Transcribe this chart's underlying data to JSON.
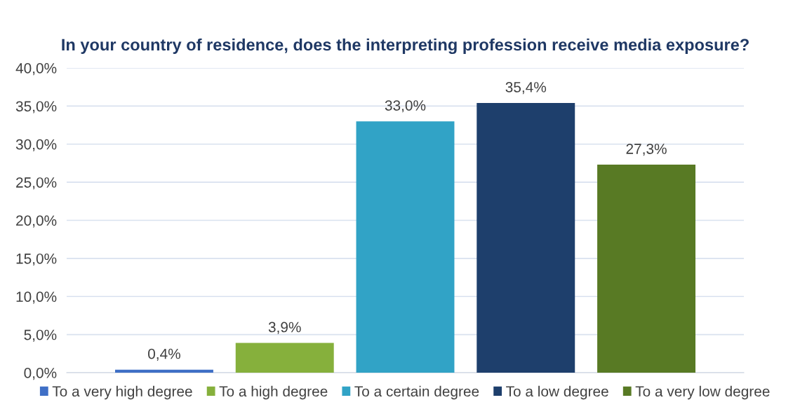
{
  "chart_data": {
    "type": "bar",
    "title": "In your country of residence, does the interpreting profession receive media exposure?",
    "categories": [
      null
    ],
    "series": [
      {
        "name": "To a very high degree",
        "color": "#3f6fc6",
        "values": [
          0.4
        ],
        "value_labels": [
          "0,4%"
        ]
      },
      {
        "name": "To a high degree",
        "color": "#86b03c",
        "values": [
          3.9
        ],
        "value_labels": [
          "3,9%"
        ]
      },
      {
        "name": "To a certain degree",
        "color": "#31a3c6",
        "values": [
          33.0
        ],
        "value_labels": [
          "33,0%"
        ]
      },
      {
        "name": "To a low degree",
        "color": "#1e3f6c",
        "values": [
          35.4
        ],
        "value_labels": [
          "35,4%"
        ]
      },
      {
        "name": "To a very low degree",
        "color": "#587a24",
        "values": [
          27.3
        ],
        "value_labels": [
          "27,3%"
        ]
      }
    ],
    "ylim": [
      0,
      40
    ],
    "yticks": [
      {
        "value": 0,
        "label": "0,0%"
      },
      {
        "value": 5,
        "label": "5,0%"
      },
      {
        "value": 10,
        "label": "10,0%"
      },
      {
        "value": 15,
        "label": "15,0%"
      },
      {
        "value": 20,
        "label": "20,0%"
      },
      {
        "value": 25,
        "label": "25,0%"
      },
      {
        "value": 30,
        "label": "30,0%"
      },
      {
        "value": 35,
        "label": "35,0%"
      },
      {
        "value": 40,
        "label": "40,0%"
      }
    ],
    "grid": "y",
    "legend": "bottom"
  }
}
